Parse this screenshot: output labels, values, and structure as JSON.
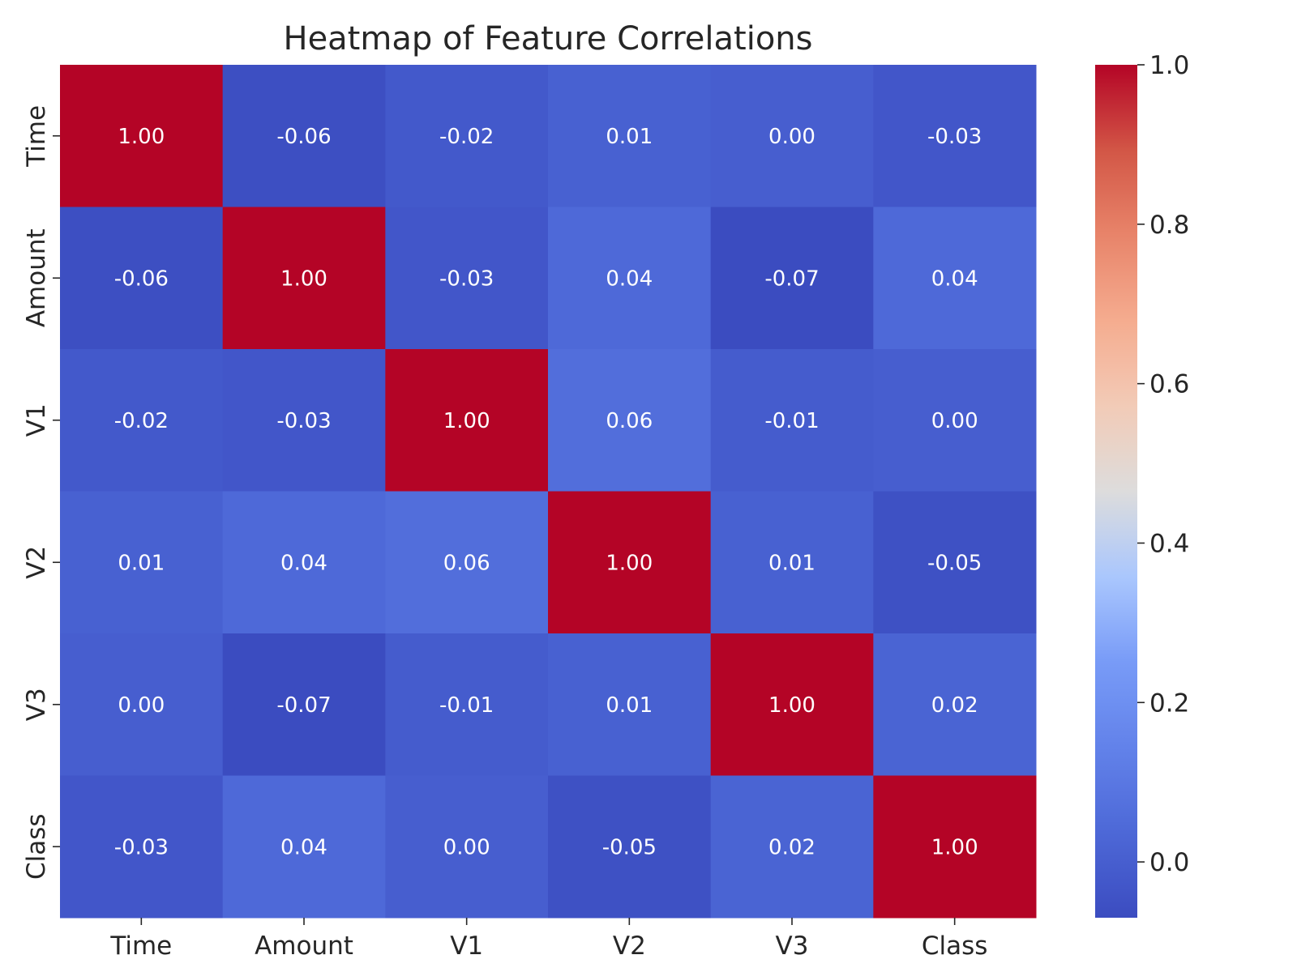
{
  "chart_data": {
    "type": "heatmap",
    "title": "Heatmap of Feature Correlations",
    "x_labels": [
      "Time",
      "Amount",
      "V1",
      "V2",
      "V3",
      "Class"
    ],
    "y_labels": [
      "Time",
      "Amount",
      "V1",
      "V2",
      "V3",
      "Class"
    ],
    "values": [
      [
        1.0,
        -0.06,
        -0.02,
        0.01,
        0.0,
        -0.03
      ],
      [
        -0.06,
        1.0,
        -0.03,
        0.04,
        -0.07,
        0.04
      ],
      [
        -0.02,
        -0.03,
        1.0,
        0.06,
        -0.01,
        0.0
      ],
      [
        0.01,
        0.04,
        0.06,
        1.0,
        0.01,
        -0.05
      ],
      [
        0.0,
        -0.07,
        -0.01,
        0.01,
        1.0,
        0.02
      ],
      [
        -0.03,
        0.04,
        0.0,
        -0.05,
        0.02,
        1.0
      ]
    ],
    "value_format": "0.00",
    "colormap": "coolwarm",
    "colorbar": {
      "range": [
        -0.07,
        1.0
      ],
      "ticks": [
        0.0,
        0.2,
        0.4,
        0.6,
        0.8,
        1.0
      ],
      "tick_labels": [
        "0.0",
        "0.2",
        "0.4",
        "0.6",
        "0.8",
        "1.0"
      ]
    },
    "xlabel": "",
    "ylabel": "",
    "grid": false
  },
  "colors": {
    "text": "#262626",
    "cell_text": "#ffffff",
    "background": "#ffffff",
    "coolwarm_low": "#3b4cc0",
    "coolwarm_mid": "#dddddd",
    "coolwarm_high": "#b40426"
  }
}
